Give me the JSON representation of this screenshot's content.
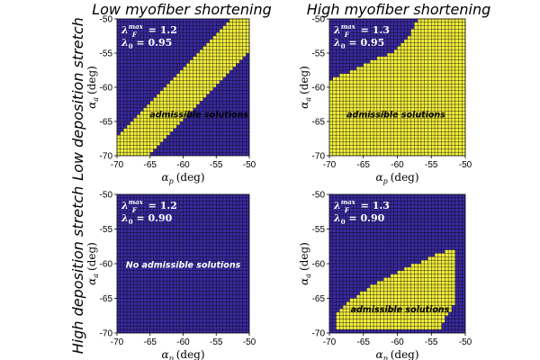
{
  "colors": {
    "admissible": "#f2ee3c",
    "inadmissible": "#3a2a9f",
    "grid": "#000000"
  },
  "column_titles": [
    "Low myofiber shortening",
    "High myofiber shortening"
  ],
  "row_titles": [
    "Low deposition stretch",
    "High deposition stretch"
  ],
  "chart_data": [
    {
      "type": "heatmap",
      "panel": "top-left",
      "params": {
        "lambda_F_max": "1.2",
        "lambda_0": "0.95"
      },
      "lambda_F_label": "λ",
      "lambda_F_sup": "max",
      "lambda_F_sub": "F",
      "lambda_0_label": "λ",
      "lambda_0_sub": "0",
      "note": "admissible solutions",
      "note_color": "#000000",
      "xlabel": "α",
      "xlabel_sub": "p",
      "xlabel_unit": "(deg)",
      "ylabel": "α",
      "ylabel_sub": "a",
      "ylabel_unit": "(deg)",
      "xlim": [
        -70,
        -50
      ],
      "ylim": [
        -70,
        -50
      ],
      "xticks": [
        "-70",
        "-65",
        "-60",
        "-55",
        "-50"
      ],
      "yticks": [
        "-70",
        "-65",
        "-60",
        "-55",
        "-50"
      ],
      "grid_size": 40,
      "region": "admissible band between lines alpha_a = alpha_p + 2.75 (upper) and alpha_a = alpha_p - 4.5 (lower), within the axes"
    },
    {
      "type": "heatmap",
      "panel": "top-right",
      "params": {
        "lambda_F_max": "1.3",
        "lambda_0": "0.95"
      },
      "lambda_F_label": "λ",
      "lambda_F_sup": "max",
      "lambda_F_sub": "F",
      "lambda_0_label": "λ",
      "lambda_0_sub": "0",
      "note": "admissible solutions",
      "note_color": "#000000",
      "xlabel": "α",
      "xlabel_sub": "p",
      "xlabel_unit": "(deg)",
      "ylabel": "α",
      "ylabel_sub": "a",
      "ylabel_unit": "(deg)",
      "xlim": [
        -70,
        -50
      ],
      "ylim": [
        -70,
        -50
      ],
      "xticks": [
        "-70",
        "-65",
        "-60",
        "-55",
        "-50"
      ],
      "yticks": [
        "-70",
        "-65",
        "-60",
        "-55",
        "-50"
      ],
      "grid_size": 40,
      "region": "admissible below curve from (-70,-59) rising to (-60,-54.5) then steeply to (-57,-50)"
    },
    {
      "type": "heatmap",
      "panel": "bottom-left",
      "params": {
        "lambda_F_max": "1.2",
        "lambda_0": "0.90"
      },
      "lambda_F_label": "λ",
      "lambda_F_sup": "max",
      "lambda_F_sub": "F",
      "lambda_0_label": "λ",
      "lambda_0_sub": "0",
      "note": "No admissible solutions",
      "note_color": "#ffffff",
      "xlabel": "α",
      "xlabel_sub": "p",
      "xlabel_unit": "(deg)",
      "ylabel": "α",
      "ylabel_sub": "a",
      "ylabel_unit": "(deg)",
      "xlim": [
        -70,
        -50
      ],
      "ylim": [
        -70,
        -50
      ],
      "xticks": [
        "-70",
        "-65",
        "-60",
        "-55",
        "-50"
      ],
      "yticks": [
        "-70",
        "-65",
        "-60",
        "-55",
        "-50"
      ],
      "grid_size": 40,
      "region": "none"
    },
    {
      "type": "heatmap",
      "panel": "bottom-right",
      "params": {
        "lambda_F_max": "1.3",
        "lambda_0": "0.90"
      },
      "lambda_F_label": "λ",
      "lambda_F_sup": "max",
      "lambda_F_sub": "F",
      "lambda_0_label": "λ",
      "lambda_0_sub": "0",
      "note": "admissible solutions",
      "note_color": "#000000",
      "xlabel": "α",
      "xlabel_sub": "p",
      "xlabel_unit": "(deg)",
      "ylabel": "α",
      "ylabel_sub": "a",
      "ylabel_unit": "(deg)",
      "xlim": [
        -70,
        -50
      ],
      "ylim": [
        -70,
        -50
      ],
      "xticks": [
        "-70",
        "-65",
        "-60",
        "-55",
        "-50"
      ],
      "yticks": [
        "-70",
        "-65",
        "-60",
        "-55",
        "-50"
      ],
      "grid_size": 40,
      "region": "admissible lens bounded above by curve from (-69,-67) to (-52.5,-58) and right edge near alpha_p = -52"
    }
  ]
}
